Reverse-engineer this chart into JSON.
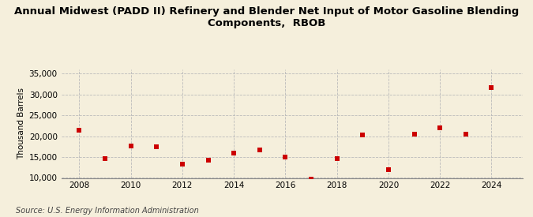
{
  "title": "Annual Midwest (PADD II) Refinery and Blender Net Input of Motor Gasoline Blending\nComponents,  RBOB",
  "ylabel": "Thousand Barrels",
  "source": "Source: U.S. Energy Information Administration",
  "years": [
    2008,
    2009,
    2010,
    2011,
    2012,
    2013,
    2014,
    2015,
    2016,
    2017,
    2018,
    2019,
    2020,
    2021,
    2022,
    2023,
    2024
  ],
  "values": [
    21500,
    14700,
    17600,
    17400,
    13400,
    14300,
    15900,
    16700,
    15000,
    9800,
    14700,
    20400,
    12000,
    20500,
    22100,
    20500,
    31700
  ],
  "marker_color": "#cc0000",
  "bg_color": "#f5efdc",
  "grid_color": "#bbbbbb",
  "ylim": [
    10000,
    36000
  ],
  "yticks": [
    10000,
    15000,
    20000,
    25000,
    30000,
    35000
  ],
  "xlim": [
    2007.3,
    2025.2
  ],
  "xticks": [
    2008,
    2010,
    2012,
    2014,
    2016,
    2018,
    2020,
    2022,
    2024
  ],
  "title_fontsize": 9.5,
  "tick_fontsize": 7.5,
  "ylabel_fontsize": 7.5,
  "source_fontsize": 7
}
